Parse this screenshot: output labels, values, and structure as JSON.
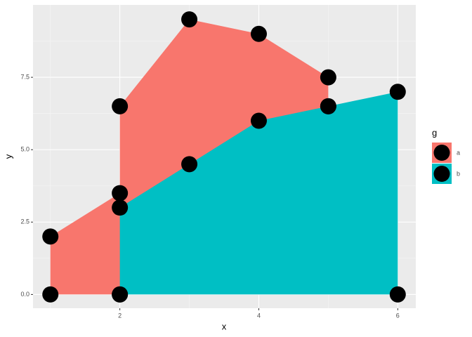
{
  "chart_data": {
    "type": "polygon",
    "xlabel": "x",
    "ylabel": "y",
    "xlim": [
      0.75,
      6.26
    ],
    "ylim": [
      -0.475,
      10.0
    ],
    "xticks": [
      2,
      4,
      6
    ],
    "yticks": [
      {
        "value": 0,
        "label": "0.0"
      },
      {
        "value": 2.5,
        "label": "2.5"
      },
      {
        "value": 5,
        "label": "5.0"
      },
      {
        "value": 7.5,
        "label": "7.5"
      }
    ],
    "xminorticks": [
      1,
      3,
      5
    ],
    "yminorticks": [
      1.25,
      3.75,
      6.25,
      8.75
    ],
    "grid": true,
    "legend_title": "g",
    "legend": "right",
    "point_color": "#000000",
    "series": [
      {
        "name": "a",
        "color": "#f8766d",
        "x": [
          1,
          1,
          2,
          2,
          3,
          4,
          5,
          5,
          2
        ],
        "values": [
          0,
          2,
          3.5,
          6.5,
          9.5,
          9,
          7.5,
          6.5,
          0
        ]
      },
      {
        "name": "b",
        "color": "#00bfc4",
        "x": [
          2,
          2,
          3,
          4,
          5,
          6,
          6
        ],
        "values": [
          0,
          3,
          4.5,
          6,
          6.5,
          7,
          0
        ]
      }
    ]
  }
}
